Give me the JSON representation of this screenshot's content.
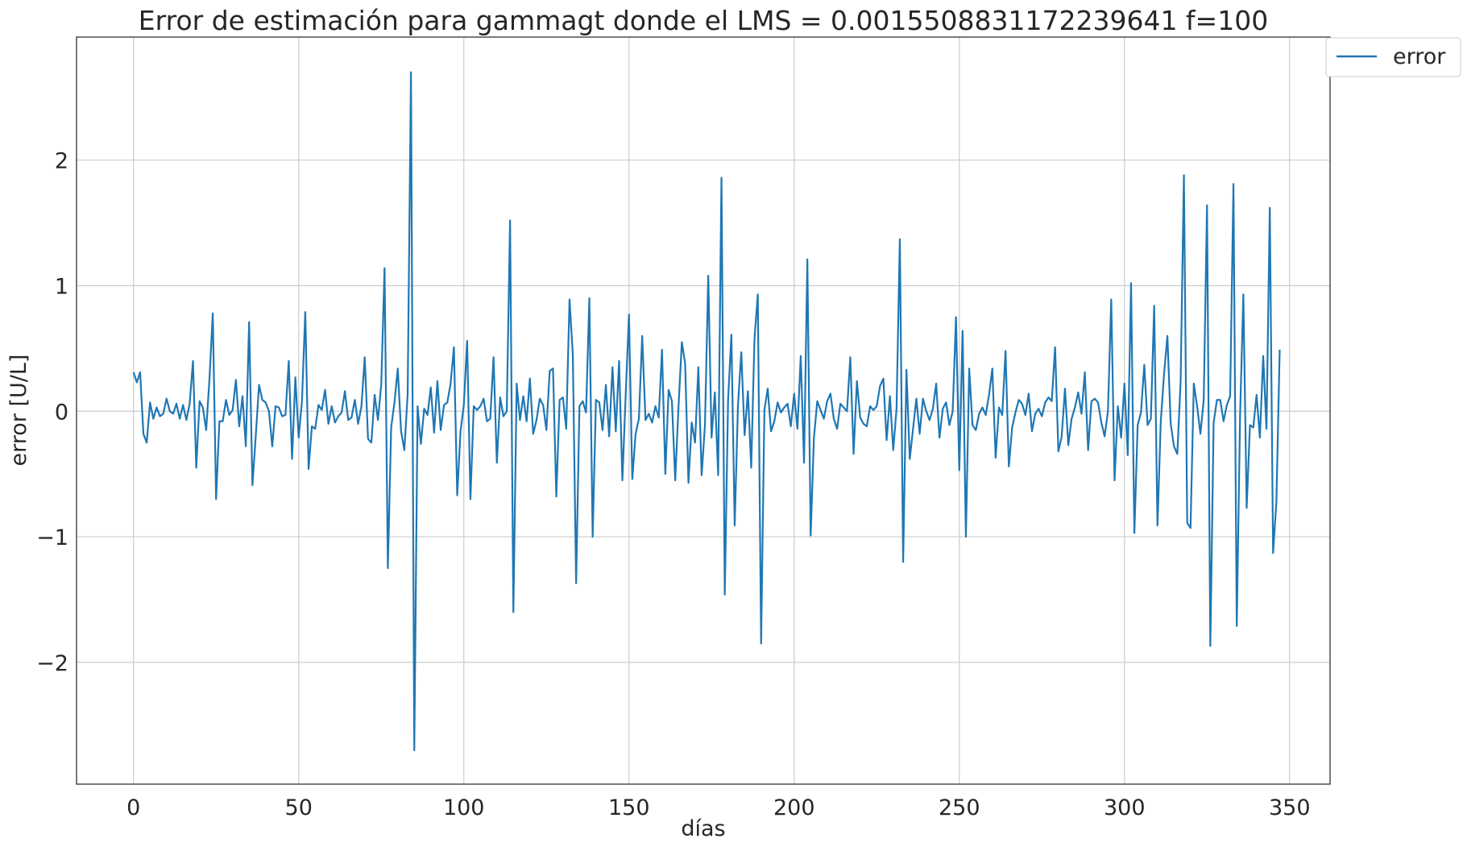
{
  "chart_data": {
    "type": "line",
    "title": "Error de estimación para gammagt donde el LMS = 0.0015508831172239641 f=100",
    "xlabel": "días",
    "ylabel": "error  [U/L]",
    "xlim": [
      -17.25,
      362.25
    ],
    "ylim": [
      -2.97,
      2.98
    ],
    "xticks": [
      0,
      50,
      100,
      150,
      200,
      250,
      300,
      350
    ],
    "xtick_labels": [
      "0",
      "50",
      "100",
      "150",
      "200",
      "250",
      "300",
      "350"
    ],
    "yticks": [
      -2,
      -1,
      0,
      1,
      2
    ],
    "ytick_labels": [
      "−2",
      "−1",
      "0",
      "1",
      "2"
    ],
    "grid": true,
    "legend": {
      "position": "outside-top-right",
      "entries": [
        "error"
      ]
    },
    "series": [
      {
        "name": "error",
        "color": "#1f77b4",
        "x_start": 0,
        "x_step": 1,
        "values": [
          0.31,
          0.23,
          0.31,
          -0.18,
          -0.25,
          0.07,
          -0.06,
          0.03,
          -0.04,
          -0.02,
          0.1,
          0.0,
          -0.02,
          0.06,
          -0.06,
          0.05,
          -0.07,
          0.06,
          0.4,
          -0.45,
          0.08,
          0.03,
          -0.15,
          0.26,
          0.78,
          -0.7,
          -0.08,
          -0.08,
          0.09,
          -0.03,
          0.01,
          0.25,
          -0.12,
          0.12,
          -0.28,
          0.71,
          -0.59,
          -0.2,
          0.21,
          0.09,
          0.07,
          0.0,
          -0.28,
          0.04,
          0.03,
          -0.04,
          -0.03,
          0.4,
          -0.38,
          0.27,
          -0.21,
          0.08,
          0.79,
          -0.46,
          -0.12,
          -0.14,
          0.05,
          0.01,
          0.17,
          -0.1,
          0.04,
          -0.09,
          -0.04,
          -0.01,
          0.16,
          -0.07,
          -0.05,
          0.09,
          -0.1,
          0.04,
          0.43,
          -0.22,
          -0.25,
          0.13,
          -0.07,
          0.21,
          1.14,
          -1.25,
          -0.13,
          0.07,
          0.34,
          -0.16,
          -0.31,
          0.14,
          2.7,
          -2.7,
          0.04,
          -0.26,
          0.02,
          -0.03,
          0.19,
          -0.17,
          0.24,
          -0.15,
          0.05,
          0.07,
          0.22,
          0.51,
          -0.67,
          -0.16,
          0.05,
          0.56,
          -0.7,
          0.04,
          0.01,
          0.04,
          0.1,
          -0.08,
          -0.06,
          0.43,
          -0.41,
          0.11,
          -0.04,
          0.0,
          1.52,
          -1.6,
          0.22,
          -0.07,
          0.12,
          -0.08,
          0.26,
          -0.18,
          -0.07,
          0.1,
          0.05,
          -0.15,
          0.32,
          0.34,
          -0.68,
          0.09,
          0.11,
          -0.14,
          0.89,
          0.45,
          -1.37,
          0.04,
          0.08,
          -0.01,
          0.9,
          -1.0,
          0.09,
          0.07,
          -0.15,
          0.21,
          -0.2,
          0.35,
          -0.16,
          0.4,
          -0.55,
          0.13,
          0.77,
          -0.54,
          -0.18,
          -0.06,
          0.6,
          -0.07,
          -0.02,
          -0.09,
          0.04,
          -0.05,
          0.49,
          -0.5,
          0.17,
          0.08,
          -0.55,
          0.04,
          0.55,
          0.38,
          -0.57,
          -0.09,
          -0.25,
          0.35,
          -0.51,
          -0.11,
          1.08,
          -0.21,
          0.15,
          -0.51,
          1.86,
          -1.46,
          0.09,
          0.61,
          -0.91,
          0.05,
          0.47,
          -0.19,
          0.16,
          -0.45,
          0.58,
          0.93,
          -1.85,
          0.01,
          0.18,
          -0.16,
          -0.08,
          0.07,
          -0.01,
          0.03,
          0.06,
          -0.12,
          0.14,
          -0.14,
          0.44,
          -0.41,
          1.21,
          -0.99,
          -0.21,
          0.08,
          0.01,
          -0.06,
          0.08,
          0.14,
          -0.06,
          -0.14,
          0.06,
          0.03,
          0.0,
          0.43,
          -0.34,
          0.24,
          -0.05,
          -0.1,
          -0.12,
          0.04,
          0.01,
          0.04,
          0.2,
          0.26,
          -0.23,
          0.12,
          -0.31,
          0.02,
          1.37,
          -1.2,
          0.33,
          -0.38,
          -0.14,
          0.1,
          -0.18,
          0.1,
          0.0,
          -0.07,
          0.02,
          0.22,
          -0.21,
          0.02,
          0.07,
          -0.11,
          0.0,
          0.75,
          -0.47,
          0.64,
          -1.0,
          0.34,
          -0.11,
          -0.15,
          -0.02,
          0.03,
          -0.03,
          0.13,
          0.34,
          -0.37,
          0.03,
          -0.03,
          0.48,
          -0.44,
          -0.13,
          -0.01,
          0.09,
          0.06,
          -0.03,
          0.14,
          -0.16,
          -0.02,
          0.02,
          -0.04,
          0.07,
          0.11,
          0.08,
          0.51,
          -0.32,
          -0.2,
          0.18,
          -0.27,
          -0.06,
          0.03,
          0.15,
          -0.02,
          0.31,
          -0.31,
          0.08,
          0.1,
          0.07,
          -0.09,
          -0.2,
          0.0,
          0.89,
          -0.55,
          0.04,
          -0.21,
          0.22,
          -0.35,
          1.02,
          -0.97,
          -0.11,
          -0.01,
          0.37,
          -0.11,
          -0.06,
          0.84,
          -0.91,
          -0.08,
          0.3,
          0.6,
          -0.1,
          -0.28,
          -0.34,
          0.23,
          1.88,
          -0.89,
          -0.93,
          0.22,
          0.04,
          -0.18,
          0.09,
          1.64,
          -1.87,
          -0.09,
          0.09,
          0.09,
          -0.08,
          0.05,
          0.12,
          1.81,
          -1.71,
          -0.04,
          0.93,
          -0.77,
          -0.11,
          -0.13,
          0.13,
          -0.21,
          0.44,
          -0.14,
          1.62,
          -1.13,
          -0.72,
          0.49
        ]
      }
    ]
  }
}
